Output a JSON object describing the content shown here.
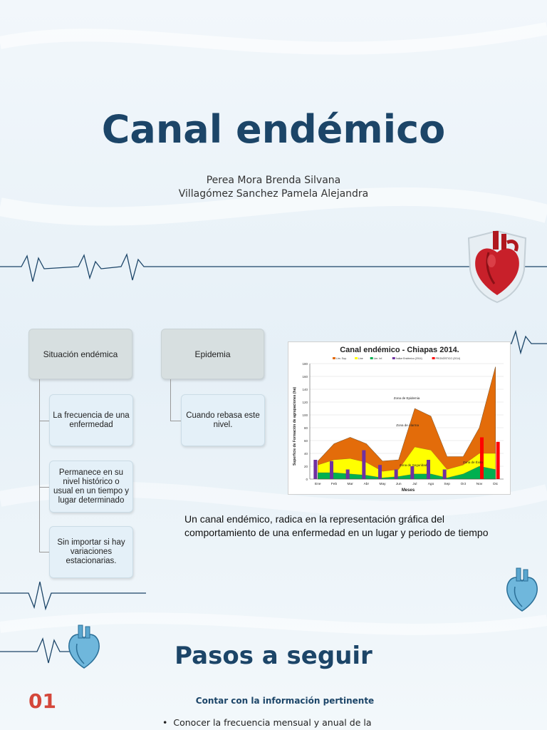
{
  "title": "Canal endémico",
  "authors": [
    "Perea Mora Brenda Silvana",
    "Villagómez Sanchez Pamela Alejandra"
  ],
  "diagram": {
    "left_head": "Situación endémica",
    "left_items": [
      "La frecuencia de una enfermedad",
      "Permanece en su nivel histórico o usual en un tiempo y lugar determinado",
      "Sin importar si hay variaciones estacionarias."
    ],
    "right_head": "Epidemia",
    "right_items": [
      "Cuando rebasa este nivel."
    ]
  },
  "description": "Un canal endémico, radica en la representación gráfica del comportamiento de una enfermedad en un lugar y periodo de tiempo",
  "section_title": "Pasos a seguir",
  "step": {
    "number": "01",
    "title": "Contar con la información pertinente",
    "bullet": "Conocer la frecuencia mensual y anual de la"
  },
  "icons": [
    "heart-shield-icon",
    "heart-icon",
    "heartbeat-line-icon"
  ],
  "chart_data": {
    "type": "area",
    "title": "Canal endémico - Chiapas 2014.",
    "xlabel": "Meses",
    "ylabel": "Superficie de Formación de agrupaciones (ha)",
    "categories": [
      "Ene",
      "Feb",
      "Mar",
      "Abr",
      "May",
      "Jun",
      "Jul",
      "Ago",
      "Sep",
      "Oct",
      "Nov",
      "Dic"
    ],
    "ylim": [
      0,
      180
    ],
    "yticks": [
      "0",
      "20",
      "40",
      "60",
      "80",
      "100",
      "120",
      "140",
      "160",
      "180"
    ],
    "legend": [
      "Lim. Sup.",
      "Line",
      "Lim. Inf.",
      "Índice Endémico (2014)",
      "PRONÓSTICO (2014)"
    ],
    "series": [
      {
        "name": "Lim. Sup.",
        "color": "#e36c0a",
        "values": [
          28,
          55,
          65,
          55,
          28,
          30,
          110,
          98,
          35,
          35,
          80,
          175
        ]
      },
      {
        "name": "Line",
        "color": "#ffff00",
        "values": [
          22,
          30,
          32,
          26,
          12,
          15,
          50,
          45,
          15,
          22,
          40,
          40
        ]
      },
      {
        "name": "Lim. Inf.",
        "color": "#00b050",
        "values": [
          10,
          10,
          8,
          6,
          2,
          4,
          8,
          8,
          2,
          8,
          20,
          15
        ]
      },
      {
        "name": "Índice Endémico (2014)",
        "color": "#7030a0",
        "values": [
          30,
          28,
          15,
          45,
          22,
          15,
          20,
          30,
          15,
          0,
          0,
          0
        ]
      },
      {
        "name": "PRONÓSTICO (2014)",
        "color": "#ff0000",
        "values": [
          0,
          0,
          0,
          0,
          0,
          0,
          0,
          0,
          0,
          0,
          65,
          58
        ]
      }
    ],
    "annotations": [
      "Zona de Epidemia",
      "Zona de Alarma",
      "Zona de Seguridad",
      "Zona de Éxito"
    ],
    "legend_position": "top"
  }
}
